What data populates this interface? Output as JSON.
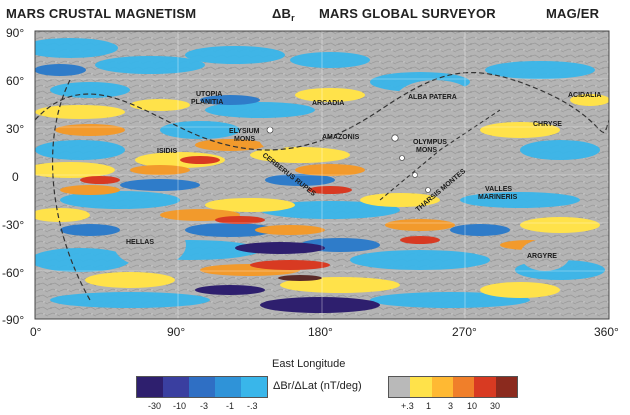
{
  "header": {
    "left_title": "MARS CRUSTAL MAGNETISM",
    "mid_title": "ΔB",
    "mid_sub": "r",
    "right_title": "MARS GLOBAL SURVEYOR",
    "far_right_title": "MAG/ER"
  },
  "axes": {
    "lat_ticks": [
      "90°",
      "60°",
      "30°",
      "0",
      "-30°",
      "-60°",
      "-90°"
    ],
    "lon_ticks": [
      "0°",
      "90°",
      "180°",
      "270°",
      "360°"
    ],
    "x_title": "East Longitude"
  },
  "regions": {
    "utopia": "UTOPIA",
    "planitia": "PLANITIA",
    "elysium": "ELYSIUM",
    "elysium_mons": "MONS",
    "arcadia": "ARCADIA",
    "alba": "ALBA PATERA",
    "acidalia": "ACIDALIA",
    "isidis": "ISIDIS",
    "amazonis": "AMAZONIS",
    "olympus": "OLYMPUS",
    "olympus_mons": "MONS",
    "chryse": "CHRYSE",
    "cerberus": "CERBERUS RUPES",
    "tharsis": "THARSIS MONTES",
    "valles": "VALLES",
    "marineris": "MARINERIS",
    "hellas": "HELLAS",
    "argyre": "ARGYRE"
  },
  "colorbar": {
    "label": "ΔBr/ΔLat (nT/deg)",
    "neg_ticks": [
      "-30",
      "-10",
      "-3",
      "-1",
      "-.3"
    ],
    "pos_ticks": [
      "+.3",
      "1",
      "3",
      "10",
      "30"
    ],
    "neg_colors": [
      "#2e1f6e",
      "#3a3fa0",
      "#2f6fc4",
      "#2f93d8",
      "#39b6ea"
    ],
    "pos_colors": [
      "#ffe24a",
      "#ffb933",
      "#f07f2a",
      "#d83a22",
      "#8b2a1e"
    ],
    "neutral_color": "#b9b9b9"
  }
}
